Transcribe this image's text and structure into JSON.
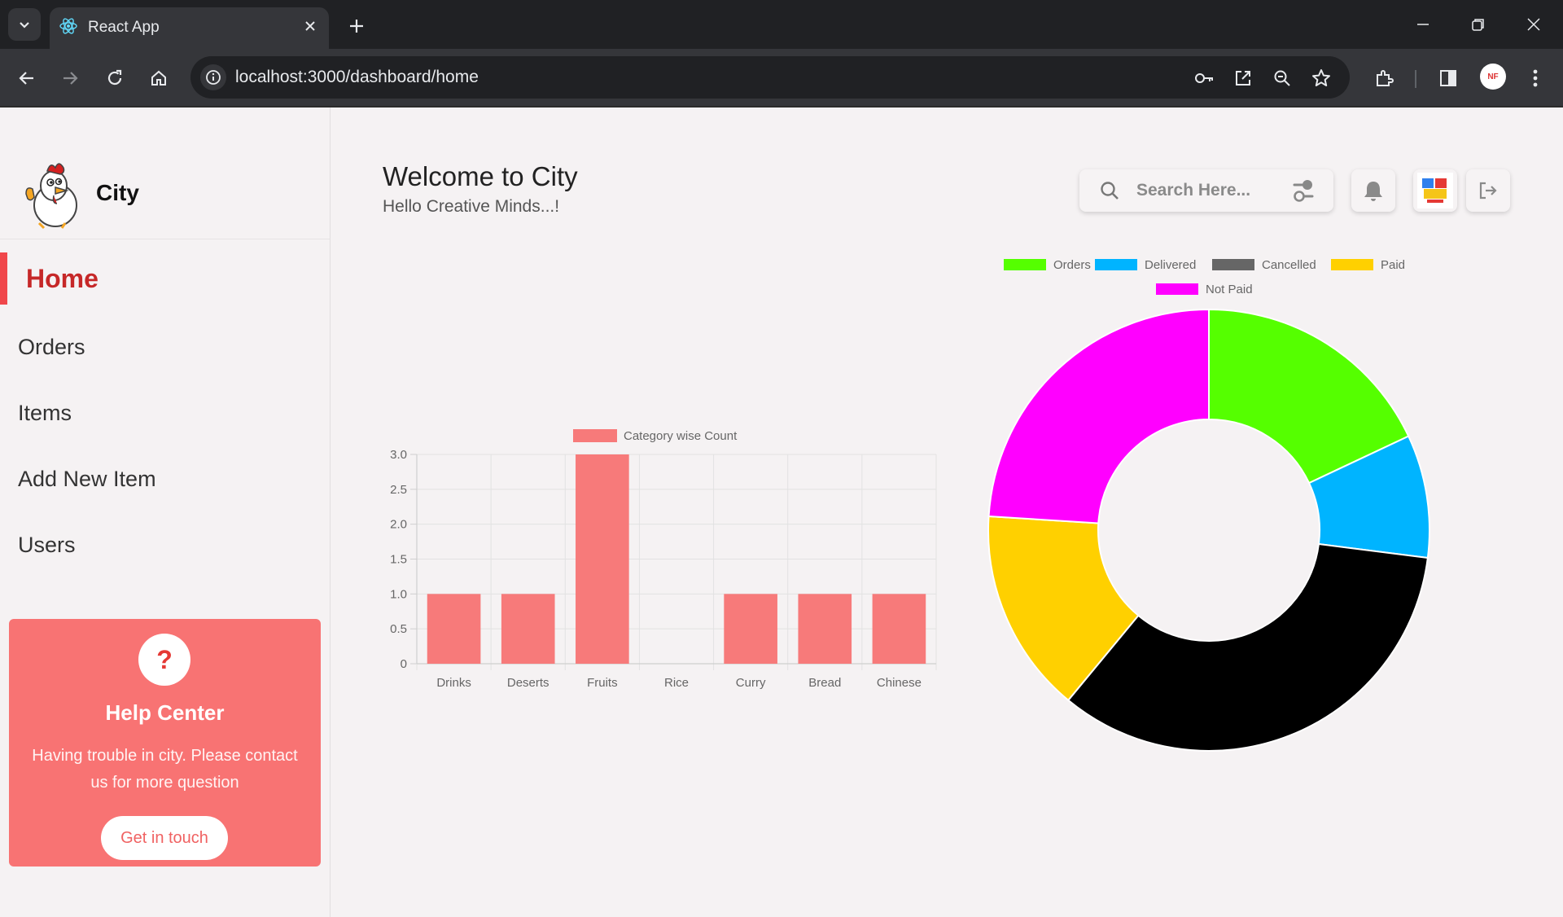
{
  "browser": {
    "tab_title": "React App",
    "url": "localhost:3000/dashboard/home"
  },
  "sidebar": {
    "brand_name": "City",
    "nav": [
      {
        "label": "Home",
        "active": true
      },
      {
        "label": "Orders"
      },
      {
        "label": "Items"
      },
      {
        "label": "Add New Item"
      },
      {
        "label": "Users"
      }
    ],
    "help": {
      "title": "Help Center",
      "text": "Having trouble in city. Please contact us for more question",
      "button": "Get in touch",
      "icon_glyph": "?"
    }
  },
  "header": {
    "title": "Welcome to City",
    "subtitle": "Hello Creative Minds...!",
    "search_placeholder": "Search Here..."
  },
  "chart_data": [
    {
      "type": "bar",
      "categories": [
        "Drinks",
        "Deserts",
        "Fruits",
        "Rice",
        "Curry",
        "Bread",
        "Chinese"
      ],
      "series": [
        {
          "name": "Category wise Count",
          "values": [
            1,
            1,
            3,
            0,
            1,
            1,
            1
          ],
          "color": "#f77a7a"
        }
      ],
      "ylim": [
        0,
        3
      ],
      "yticks": [
        "0",
        "0.5",
        "1.0",
        "1.5",
        "2.0",
        "2.5",
        "3.0"
      ],
      "grid": true,
      "legend": "top"
    },
    {
      "type": "pie",
      "variant": "doughnut",
      "labels": [
        "Orders",
        "Delivered",
        "Cancelled",
        "Paid",
        "Not Paid"
      ],
      "values": [
        18,
        9,
        34,
        15,
        24
      ],
      "colors": [
        "#55ff00",
        "#00b4ff",
        "#000000",
        "#ffd000",
        "#ff00ff"
      ],
      "legend_colors": [
        "#55ff00",
        "#00b4ff",
        "#666666",
        "#ffd000",
        "#ff00ff"
      ],
      "legend": "top"
    }
  ]
}
